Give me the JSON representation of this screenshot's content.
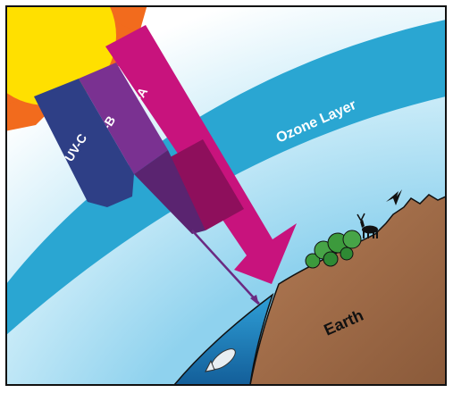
{
  "labels": {
    "uvc": "UV-C",
    "uvb": "UV-B",
    "uva": "UV-A",
    "ozone": "Ozone Layer",
    "earth": "Earth"
  },
  "colors": {
    "sky_outer": "#ffffff",
    "sky_inner": "#8fd2ee",
    "ozone": "#2aa6d2",
    "sun_core": "#ffe000",
    "sun_rays": "#f26b1d",
    "uvc": "#2e3f86",
    "uvb": "#7a3191",
    "uva": "#c8137d",
    "ground": "#a8714c",
    "water": "#1f8ccb",
    "trees": "#3c9a3c",
    "outline": "#111111"
  },
  "icons": [
    "sun-icon",
    "caribou-icon",
    "bird-icon",
    "fish-icon",
    "tree-icon"
  ]
}
